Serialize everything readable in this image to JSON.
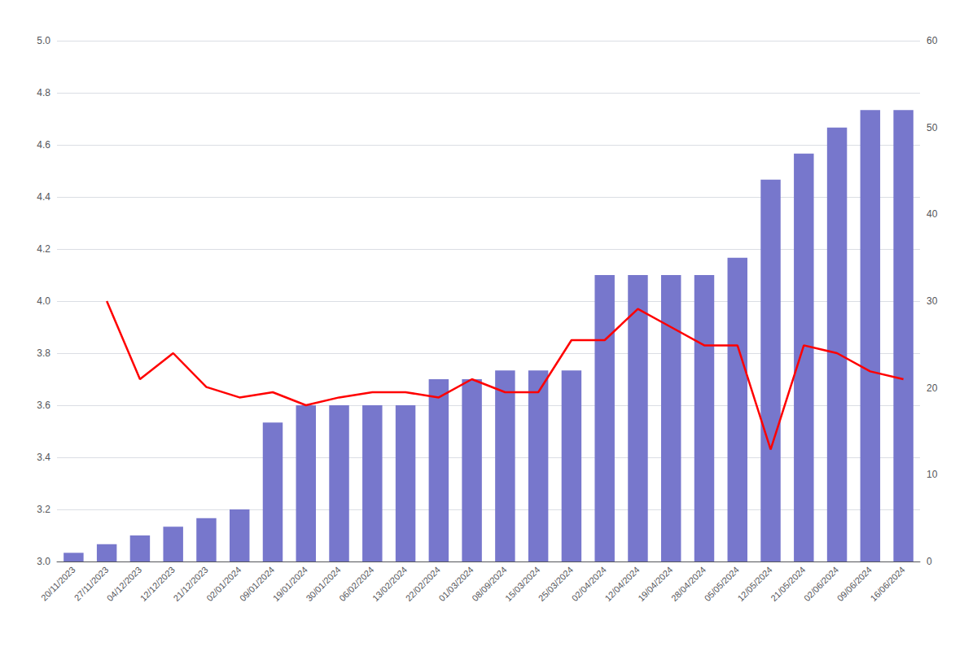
{
  "chart_data": {
    "type": "bar",
    "categories": [
      "20/11/2023",
      "27/11/2023",
      "04/12/2023",
      "12/12/2023",
      "21/12/2023",
      "02/01/2024",
      "09/01/2024",
      "19/01/2024",
      "30/01/2024",
      "06/02/2024",
      "13/02/2024",
      "22/02/2024",
      "01/03/2024",
      "08/09/2024",
      "15/03/2024",
      "25/03/2024",
      "02/04/2024",
      "12/04/2024",
      "19/04/2024",
      "28/04/2024",
      "05/05/2024",
      "12/05/2024",
      "21/05/2024",
      "02/06/2024",
      "09/06/2024",
      "16/06/2024"
    ],
    "series": [
      {
        "type": "bar",
        "axis": "y2",
        "color": "#7777cc",
        "values": [
          1,
          2,
          3,
          4,
          5,
          6,
          16,
          18,
          18,
          18,
          18,
          21,
          21,
          22,
          22,
          22,
          33,
          33,
          33,
          33,
          35,
          44,
          47,
          50,
          52,
          52
        ]
      },
      {
        "type": "line",
        "color": "#ff0000",
        "values": [
          null,
          4.0,
          3.7,
          3.8,
          3.67,
          3.63,
          3.65,
          3.6,
          3.63,
          3.65,
          3.65,
          3.63,
          3.7,
          3.65,
          3.65,
          3.85,
          3.85,
          3.97,
          3.9,
          3.83,
          3.83,
          3.43,
          3.83,
          3.8,
          3.73,
          3.7
        ]
      }
    ],
    "ylim": [
      3.0,
      5.0
    ],
    "yticks": [
      {
        "value": 3,
        "label": "3.0"
      },
      3.2,
      3.4,
      3.6,
      3.8,
      {
        "value": 4,
        "label": "4.0"
      },
      4.2,
      4.4,
      4.6,
      4.8,
      {
        "value": 5,
        "label": "5.0"
      }
    ],
    "y2lim": [
      0,
      60
    ],
    "y2ticks": [
      0,
      10,
      20,
      30,
      40,
      50,
      60
    ],
    "grid": true
  }
}
